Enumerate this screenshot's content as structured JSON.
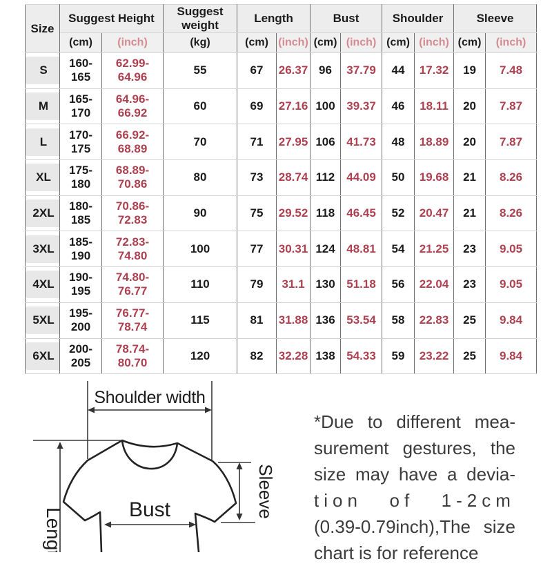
{
  "table": {
    "size_header": "Size",
    "groups": [
      {
        "label": "Suggest Height"
      },
      {
        "label": "Suggest weight"
      },
      {
        "label": "Length"
      },
      {
        "label": "Bust"
      },
      {
        "label": "Shoulder"
      },
      {
        "label": "Sleeve"
      }
    ],
    "subheaders": [
      {
        "label": "(cm)",
        "red": false
      },
      {
        "label": "(inch)",
        "red": true
      },
      {
        "label": "(kg)",
        "red": false
      },
      {
        "label": "(cm)",
        "red": false
      },
      {
        "label": "(inch)",
        "red": true
      },
      {
        "label": "(cm)",
        "red": false
      },
      {
        "label": "(inch)",
        "red": true
      },
      {
        "label": "(cm)",
        "red": false
      },
      {
        "label": "(inch)",
        "red": true
      },
      {
        "label": "(cm)",
        "red": false
      },
      {
        "label": "(inch)",
        "red": true
      }
    ],
    "rows": [
      [
        "S",
        "160-165",
        "62.99-64.96",
        "55",
        "67",
        "26.37",
        "96",
        "37.79",
        "44",
        "17.32",
        "19",
        "7.48"
      ],
      [
        "M",
        "165-170",
        "64.96-66.92",
        "60",
        "69",
        "27.16",
        "100",
        "39.37",
        "46",
        "18.11",
        "20",
        "7.87"
      ],
      [
        "L",
        "170-175",
        "66.92-68.89",
        "70",
        "71",
        "27.95",
        "106",
        "41.73",
        "48",
        "18.89",
        "20",
        "7.87"
      ],
      [
        "XL",
        "175-180",
        "68.89-70.86",
        "80",
        "73",
        "28.74",
        "112",
        "44.09",
        "50",
        "19.68",
        "21",
        "8.26"
      ],
      [
        "2XL",
        "180-185",
        "70.86-72.83",
        "90",
        "75",
        "29.52",
        "118",
        "46.45",
        "52",
        "20.47",
        "21",
        "8.26"
      ],
      [
        "3XL",
        "185-190",
        "72.83-74.80",
        "100",
        "77",
        "30.31",
        "124",
        "48.81",
        "54",
        "21.25",
        "23",
        "9.05"
      ],
      [
        "4XL",
        "190-195",
        "74.80-76.77",
        "110",
        "79",
        "31.1",
        "130",
        "51.18",
        "56",
        "22.04",
        "23",
        "9.05"
      ],
      [
        "5XL",
        "195-200",
        "76.77-78.74",
        "115",
        "81",
        "31.88",
        "136",
        "53.54",
        "58",
        "22.83",
        "25",
        "9.84"
      ],
      [
        "6XL",
        "200-205",
        "78.74-80.70",
        "120",
        "82",
        "32.28",
        "138",
        "54.33",
        "59",
        "23.22",
        "25",
        "9.84"
      ]
    ]
  },
  "diagram": {
    "shoulder_width_label": "Shoulder width",
    "bust_label": "Bust",
    "sleeve_label": "Sleeve",
    "length_label": "Length"
  },
  "note": {
    "lines": [
      "*Due to different mea-",
      "surement gestures, the",
      "size may have a devia-",
      "tion of 1-2cm",
      "(0.39-0.79inch),The size",
      "chart is for reference"
    ]
  },
  "colors": {
    "inch_red": "#ad4150",
    "inch_header_red": "#d58a92",
    "table_vertical_line": "#6f6f6f",
    "table_horizontal_line": "#d4d4d4",
    "header_background": "#ededed",
    "size_chip_background": "#e8e8e8",
    "note_text": "#3c3c3c"
  }
}
